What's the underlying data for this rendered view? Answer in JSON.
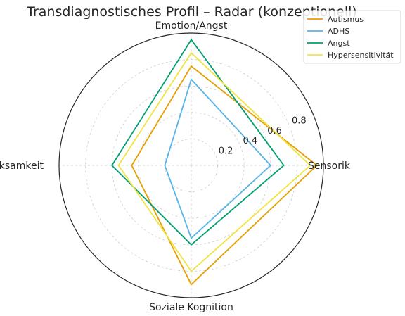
{
  "chart_data": {
    "type": "radar",
    "title": "Transdiagnostisches Profil – Radar (konzeptionell)",
    "axes": [
      "Sensorik",
      "Emotion/Angst",
      "EF/Aufmerksamkeit",
      "Soziale Kognition"
    ],
    "rlim": [
      0,
      1.0
    ],
    "r_ticks": [
      0.2,
      0.4,
      0.6,
      0.8
    ],
    "grid": true,
    "legend_position": "top-right",
    "series": [
      {
        "name": "Autismus",
        "color": "#E69F00",
        "values": [
          0.95,
          0.75,
          0.45,
          0.9
        ]
      },
      {
        "name": "ADHS",
        "color": "#56B4E9",
        "values": [
          0.6,
          0.65,
          0.2,
          0.55
        ]
      },
      {
        "name": "Angst",
        "color": "#009E73",
        "values": [
          0.7,
          0.95,
          0.6,
          0.6
        ]
      },
      {
        "name": "Hypersensitivität",
        "color": "#F0E442",
        "values": [
          0.9,
          0.85,
          0.55,
          0.8
        ]
      }
    ]
  }
}
